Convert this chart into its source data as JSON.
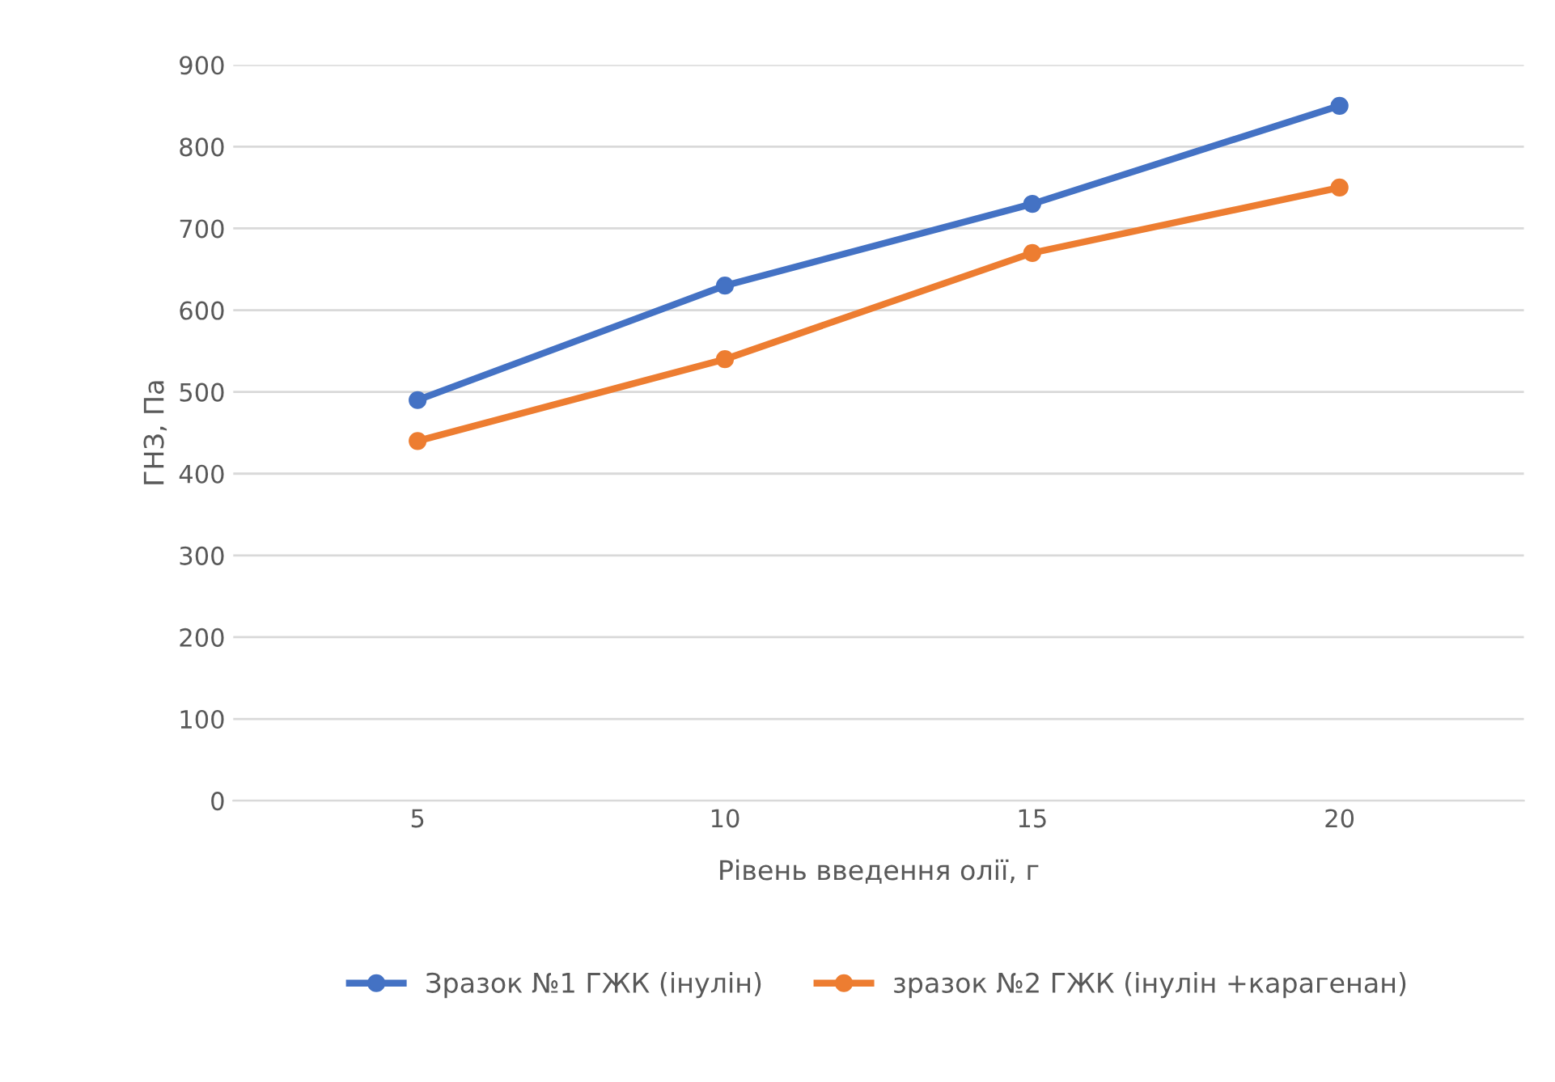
{
  "chart_data": {
    "type": "line",
    "xlabel": "Рівень введення олії, г",
    "ylabel": "ГНЗ, Па",
    "categories": [
      "5",
      "10",
      "15",
      "20"
    ],
    "series": [
      {
        "name": "Зразок №1 ГЖК (інулін)",
        "color": "#4472c4",
        "values": [
          490,
          630,
          730,
          850
        ]
      },
      {
        "name": "зразок №2 ГЖК (інулін +карагенан)",
        "color": "#ed7d31",
        "values": [
          440,
          540,
          670,
          750
        ]
      }
    ],
    "ylim": [
      0,
      900
    ],
    "yticks": [
      0,
      100,
      200,
      300,
      400,
      500,
      600,
      700,
      800,
      900
    ],
    "grid": "y",
    "legend": "bottom",
    "marker": "circle",
    "line_style": "solid"
  }
}
